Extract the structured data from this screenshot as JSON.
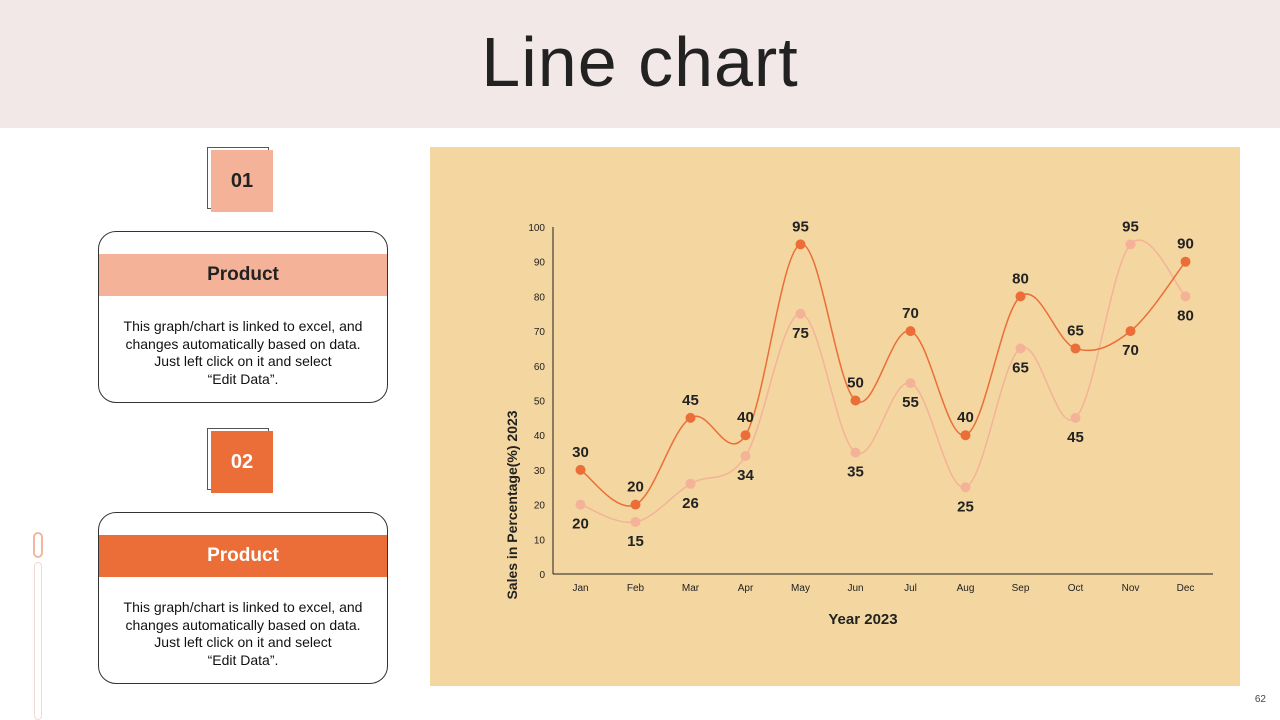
{
  "title": "Line chart",
  "page_number": "62",
  "colors": {
    "header_bg": "#f3e8e8",
    "accent_light": "#f4b398",
    "accent_dark": "#eb6e39",
    "chart_bg": "#f4d6a0"
  },
  "items": [
    {
      "number": "01",
      "heading": "Product",
      "description": "This graph/chart is linked to excel, and\nchanges automatically based on data.\nJust left click on it and select\n“Edit Data”."
    },
    {
      "number": "02",
      "heading": "Product",
      "description": "This graph/chart is linked to excel, and\nchanges automatically based on data.\nJust left click on it and select\n“Edit Data”."
    }
  ],
  "chart_data": {
    "type": "line",
    "title": "",
    "xlabel": "Year 2023",
    "ylabel": "Sales in Percentage(%) 2023",
    "ylim": [
      0,
      100
    ],
    "yticks": [
      0,
      10,
      20,
      30,
      40,
      50,
      60,
      70,
      80,
      90,
      100
    ],
    "categories": [
      "Jan",
      "Feb",
      "Mar",
      "Apr",
      "May",
      "Jun",
      "Jul",
      "Aug",
      "Sep",
      "Oct",
      "Nov",
      "Dec"
    ],
    "grid": false,
    "legend": "none",
    "smooth": true,
    "data_labels": true,
    "series": [
      {
        "values": [
          30,
          20,
          45,
          40,
          95,
          50,
          70,
          40,
          80,
          65,
          70,
          90
        ],
        "color": "#eb6e39"
      },
      {
        "values": [
          20,
          15,
          26,
          34,
          75,
          35,
          55,
          25,
          65,
          45,
          95,
          80
        ],
        "color": "#f4b398"
      }
    ]
  }
}
